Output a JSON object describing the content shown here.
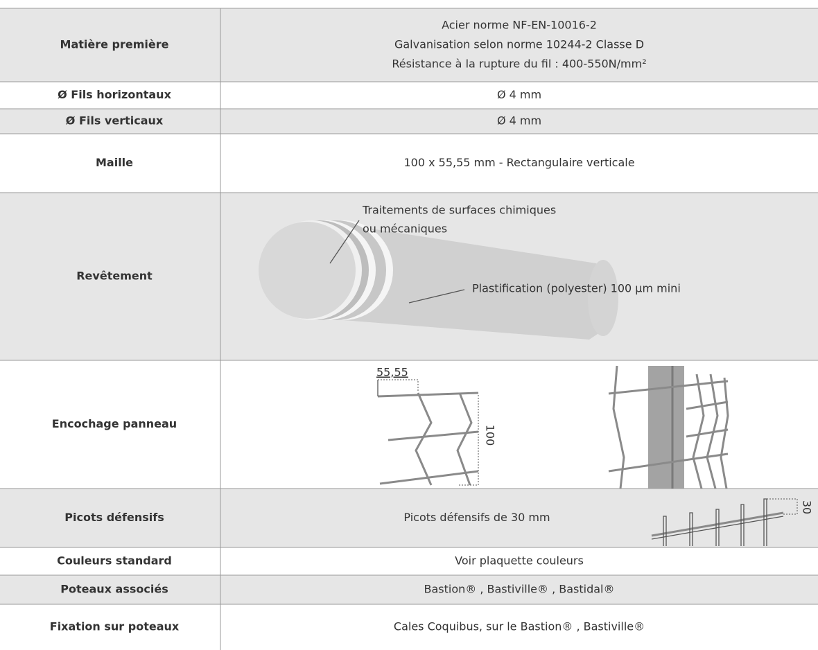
{
  "table": {
    "rows": [
      {
        "label": "Matière première",
        "lines": [
          "Acier norme NF-EN-10016-2",
          "Galvanisation selon norme 10244-2 Classe D",
          "Résistance à la rupture du fil : 400-550N/mm²"
        ]
      },
      {
        "label": "Ø Fils horizontaux",
        "value": "Ø 4 mm"
      },
      {
        "label": "Ø Fils verticaux",
        "value": "Ø 4 mm"
      },
      {
        "label": "Maille",
        "value": "100 x 55,55 mm - Rectangulaire verticale"
      },
      {
        "label": "Revêtement",
        "annotations": [
          "Traitements de surfaces chimiques",
          "ou mécaniques",
          "Plastification (polyester) 100 µm mini"
        ]
      },
      {
        "label": "Encochage panneau",
        "dimensions": [
          "55,55",
          "100"
        ]
      },
      {
        "label": "Picots défensifs",
        "value": "Picots défensifs de 30 mm",
        "dimension": "30"
      },
      {
        "label": "Couleurs standard",
        "value": "Voir plaquette couleurs"
      },
      {
        "label": "Poteaux associés",
        "value": "Bastion® , Bastiville® , Bastidal®"
      },
      {
        "label": "Fixation sur poteaux",
        "value": "Cales Coquibus, sur le Bastion® , Bastiville®"
      }
    ]
  }
}
